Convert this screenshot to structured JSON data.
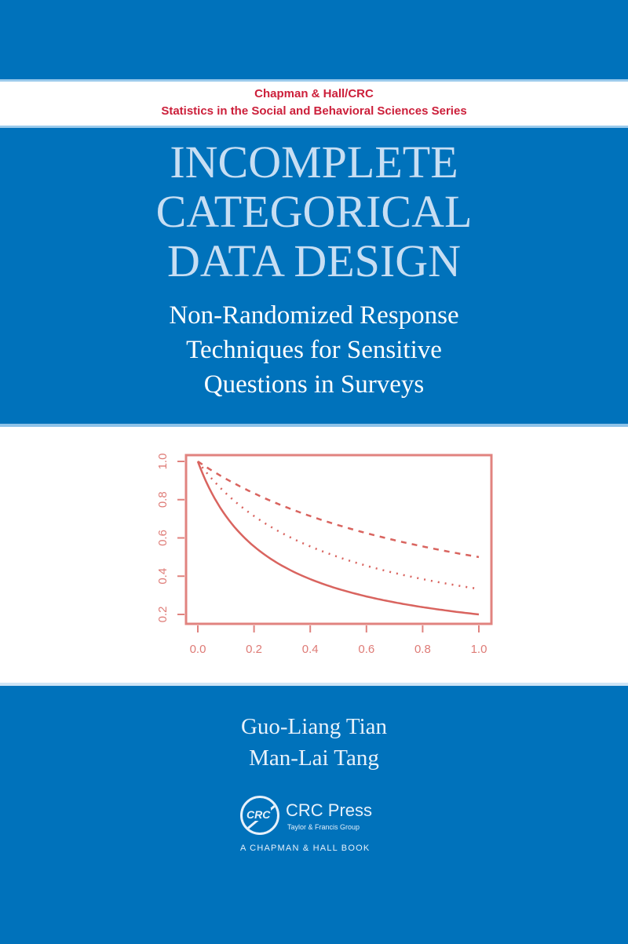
{
  "series": {
    "line1": "Chapman & Hall/CRC",
    "line2": "Statistics in the Social and Behavioral Sciences Series"
  },
  "title": {
    "line1": "INCOMPLETE",
    "line2": "CATEGORICAL",
    "line3": "DATA DESIGN"
  },
  "subtitle": {
    "line1": "Non-Randomized Response",
    "line2": "Techniques for Sensitive",
    "line3": "Questions in Surveys"
  },
  "authors": [
    "Guo-Liang Tian",
    "Man-Lai Tang"
  ],
  "publisher": {
    "logo_text": "CRC",
    "name": "CRC Press",
    "group": "Taylor & Francis Group",
    "imprint": "A CHAPMAN & HALL BOOK"
  },
  "colors": {
    "background": "#0072bb",
    "series_text": "#cc1f3a",
    "title_text": "#c7def3",
    "plot_color": "#d9645f"
  },
  "chart_data": {
    "type": "line",
    "title": "",
    "xlabel": "",
    "ylabel": "",
    "xlim": [
      0.0,
      1.0
    ],
    "ylim": [
      0.2,
      1.0
    ],
    "x_ticks": [
      "0.0",
      "0.2",
      "0.4",
      "0.6",
      "0.8",
      "1.0"
    ],
    "y_ticks": [
      "0.2",
      "0.4",
      "0.6",
      "0.8",
      "1.0"
    ],
    "grid": false,
    "legend": null,
    "x": [
      0.0,
      0.1,
      0.2,
      0.3,
      0.4,
      0.5,
      0.6,
      0.7,
      0.8,
      0.9,
      1.0
    ],
    "series": [
      {
        "name": "solid",
        "style": "solid",
        "values": [
          1.0,
          0.714,
          0.556,
          0.455,
          0.385,
          0.333,
          0.294,
          0.263,
          0.238,
          0.217,
          0.2
        ]
      },
      {
        "name": "dotted",
        "style": "dotted",
        "values": [
          1.0,
          0.833,
          0.714,
          0.625,
          0.556,
          0.5,
          0.455,
          0.417,
          0.385,
          0.357,
          0.333
        ]
      },
      {
        "name": "dashed",
        "style": "dashed",
        "values": [
          1.0,
          0.909,
          0.833,
          0.769,
          0.714,
          0.667,
          0.625,
          0.588,
          0.556,
          0.526,
          0.5
        ]
      }
    ]
  }
}
